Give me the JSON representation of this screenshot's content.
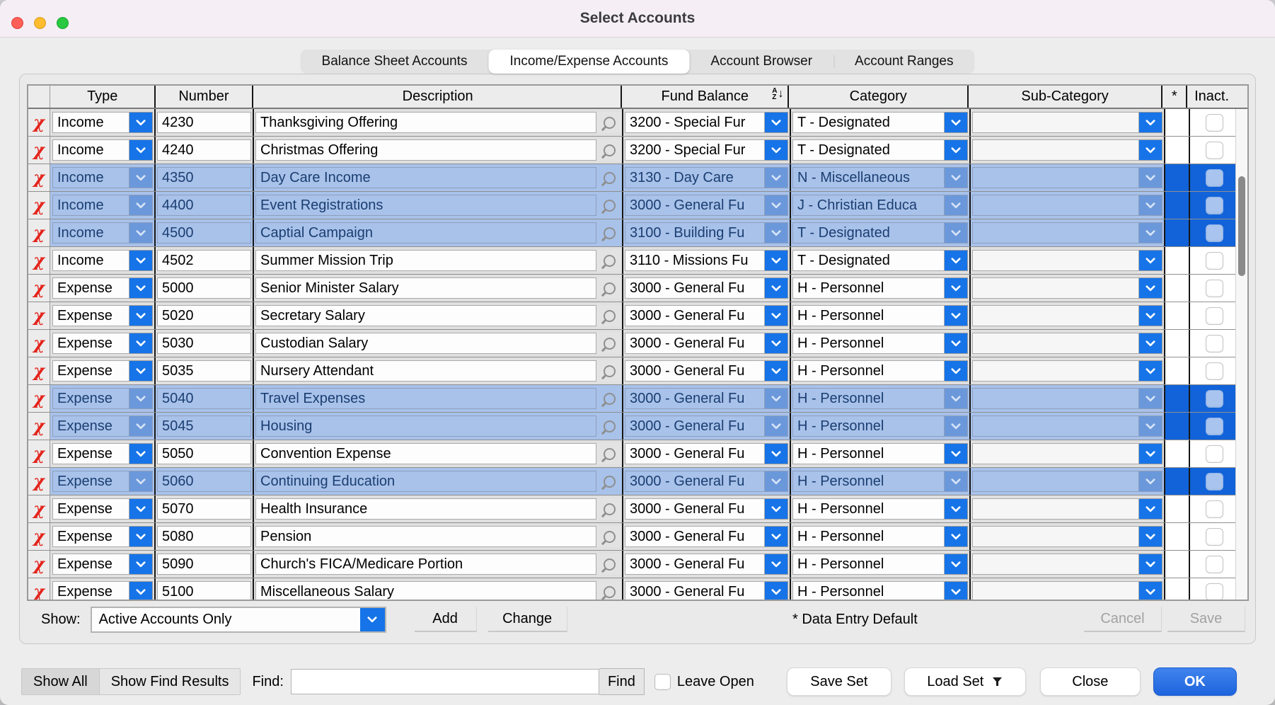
{
  "window": {
    "title": "Select Accounts"
  },
  "colors": {
    "accent_blue": "#1674e8",
    "selected_row_bg": "#a8c2ea",
    "selected_cell_bg": "#1263d9",
    "selected_text": "#1b3e71",
    "delete_red": "#e3241c",
    "ok_button_blue": "#2a72e6",
    "titlebar_bg": "#f5eff5"
  },
  "icons": {
    "delete": "χ",
    "dropdown": "chevron-down",
    "search": "magnifier",
    "sort_a": "A",
    "sort_z": "Z",
    "sort_arrow": "↓",
    "load_set_menu": "funnel-down"
  },
  "tabs": [
    {
      "label": "Balance Sheet Accounts",
      "selected": false
    },
    {
      "label": "Income/Expense Accounts",
      "selected": true
    },
    {
      "label": "Account Browser",
      "selected": false
    },
    {
      "label": "Account Ranges",
      "selected": false
    }
  ],
  "table": {
    "headers": {
      "type": "Type",
      "number": "Number",
      "description": "Description",
      "fund": "Fund Balance",
      "category": "Category",
      "subcategory": "Sub-Category",
      "star": "*",
      "inactive": "Inact."
    },
    "rows": [
      {
        "type": "Income",
        "number": "4230",
        "description": "Thanksgiving Offering",
        "fund": "3200 - Special Fur",
        "category": "T - Designated",
        "subcategory": "",
        "selected": false,
        "inactive": false
      },
      {
        "type": "Income",
        "number": "4240",
        "description": "Christmas Offering",
        "fund": "3200 - Special Fur",
        "category": "T - Designated",
        "subcategory": "",
        "selected": false,
        "inactive": false
      },
      {
        "type": "Income",
        "number": "4350",
        "description": "Day Care Income",
        "fund": "3130 - Day Care",
        "category": "N - Miscellaneous",
        "subcategory": "",
        "selected": true,
        "inactive": false
      },
      {
        "type": "Income",
        "number": "4400",
        "description": "Event Registrations",
        "fund": "3000 - General Fu",
        "category": "J - Christian Educa",
        "subcategory": "",
        "selected": true,
        "inactive": false
      },
      {
        "type": "Income",
        "number": "4500",
        "description": "Captial Campaign",
        "fund": "3100 - Building Fu",
        "category": "T - Designated",
        "subcategory": "",
        "selected": true,
        "inactive": false
      },
      {
        "type": "Income",
        "number": "4502",
        "description": "Summer Mission Trip",
        "fund": "3110 - Missions Fu",
        "category": "T - Designated",
        "subcategory": "",
        "selected": false,
        "inactive": false
      },
      {
        "type": "Expense",
        "number": "5000",
        "description": "Senior Minister Salary",
        "fund": "3000 - General Fu",
        "category": "H - Personnel",
        "subcategory": "",
        "selected": false,
        "inactive": false
      },
      {
        "type": "Expense",
        "number": "5020",
        "description": "Secretary Salary",
        "fund": "3000 - General Fu",
        "category": "H - Personnel",
        "subcategory": "",
        "selected": false,
        "inactive": false
      },
      {
        "type": "Expense",
        "number": "5030",
        "description": "Custodian Salary",
        "fund": "3000 - General Fu",
        "category": "H - Personnel",
        "subcategory": "",
        "selected": false,
        "inactive": false
      },
      {
        "type": "Expense",
        "number": "5035",
        "description": "Nursery Attendant",
        "fund": "3000 - General Fu",
        "category": "H - Personnel",
        "subcategory": "",
        "selected": false,
        "inactive": false
      },
      {
        "type": "Expense",
        "number": "5040",
        "description": "Travel Expenses",
        "fund": "3000 - General Fu",
        "category": "H - Personnel",
        "subcategory": "",
        "selected": true,
        "inactive": false
      },
      {
        "type": "Expense",
        "number": "5045",
        "description": "Housing",
        "fund": "3000 - General Fu",
        "category": "H - Personnel",
        "subcategory": "",
        "selected": true,
        "inactive": false
      },
      {
        "type": "Expense",
        "number": "5050",
        "description": "Convention Expense",
        "fund": "3000 - General Fu",
        "category": "H - Personnel",
        "subcategory": "",
        "selected": false,
        "inactive": false
      },
      {
        "type": "Expense",
        "number": "5060",
        "description": "Continuing Education",
        "fund": "3000 - General Fu",
        "category": "H - Personnel",
        "subcategory": "",
        "selected": true,
        "inactive": false
      },
      {
        "type": "Expense",
        "number": "5070",
        "description": "Health Insurance",
        "fund": "3000 - General Fu",
        "category": "H - Personnel",
        "subcategory": "",
        "selected": false,
        "inactive": false
      },
      {
        "type": "Expense",
        "number": "5080",
        "description": "Pension",
        "fund": "3000 - General Fu",
        "category": "H - Personnel",
        "subcategory": "",
        "selected": false,
        "inactive": false
      },
      {
        "type": "Expense",
        "number": "5090",
        "description": "Church's FICA/Medicare Portion",
        "fund": "3000 - General Fu",
        "category": "H - Personnel",
        "subcategory": "",
        "selected": false,
        "inactive": false
      },
      {
        "type": "Expense",
        "number": "5100",
        "description": "Miscellaneous Salary",
        "fund": "3000 - General Fu",
        "category": "H - Personnel",
        "subcategory": "",
        "selected": false,
        "inactive": false
      }
    ]
  },
  "footer": {
    "show_label": "Show:",
    "show_value": "Active Accounts Only",
    "add": "Add",
    "change": "Change",
    "note": "* Data Entry Default",
    "cancel": "Cancel",
    "save": "Save"
  },
  "bottom": {
    "show_all": "Show All",
    "show_find_results": "Show Find Results",
    "find_label": "Find:",
    "find_value": "",
    "find_button": "Find",
    "leave_open": "Leave Open",
    "save_set": "Save Set",
    "load_set": "Load Set",
    "close": "Close",
    "ok": "OK"
  }
}
